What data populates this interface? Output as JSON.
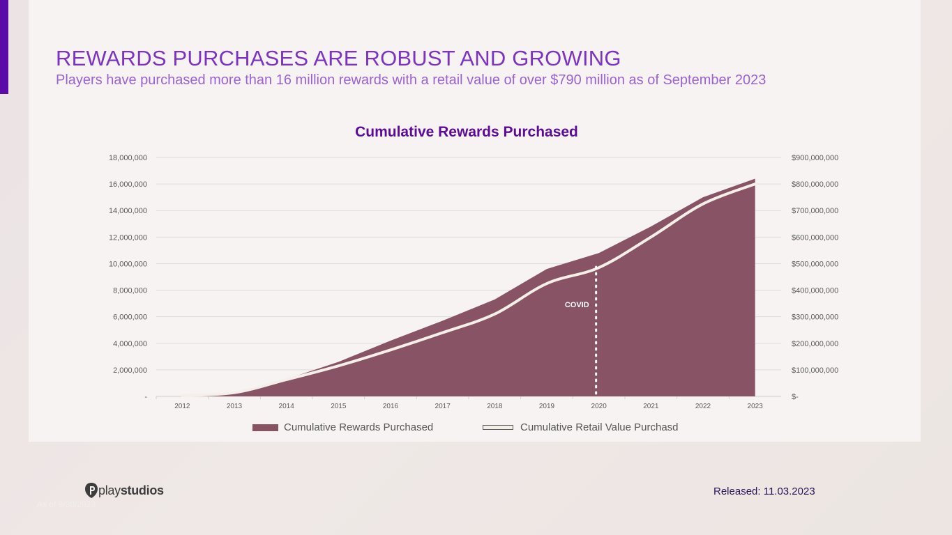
{
  "header": {
    "title": "REWARDS PURCHASES ARE ROBUST AND GROWING",
    "subtitle": "Players have purchased more than 16 million rewards with a retail value of over $790 million as of September 2023"
  },
  "footer": {
    "logo_text_light": "play",
    "logo_text_bold": "studios",
    "as_of": "As of 9/30/2023",
    "released": "Released: 11.03.2023"
  },
  "colors": {
    "accent": "#5b0aa8",
    "chart_title": "#5b0a99",
    "area_fill": "#875365",
    "line": "#f5efe9"
  },
  "chart_data": {
    "type": "area",
    "title": "Cumulative Rewards Purchased",
    "categories": [
      "2012",
      "2013",
      "2014",
      "2015",
      "2016",
      "2017",
      "2018",
      "2019",
      "2020",
      "2021",
      "2022",
      "2023"
    ],
    "y_ticks_left": [
      "18,000,000",
      "16,000,000",
      "14,000,000",
      "12,000,000",
      "10,000,000",
      "8,000,000",
      "6,000,000",
      "4,000,000",
      "2,000,000",
      "-"
    ],
    "y_ticks_right": [
      "$900,000,000",
      "$800,000,000",
      "$700,000,000",
      "$600,000,000",
      "$500,000,000",
      "$400,000,000",
      "$300,000,000",
      "$200,000,000",
      "$100,000,000",
      "$-"
    ],
    "ylim_left": [
      0,
      18000000
    ],
    "ylim_right": [
      0,
      900000000
    ],
    "series": [
      {
        "name": "Cumulative Rewards Purchased",
        "kind": "area",
        "axis": "left",
        "values": [
          0,
          200000,
          1300000,
          2600000,
          4200000,
          5700000,
          7300000,
          9600000,
          10800000,
          12800000,
          15000000,
          16400000
        ]
      },
      {
        "name": "Cumulative Retail Value Purchasd",
        "kind": "line",
        "axis": "right",
        "values": [
          3000000,
          14000000,
          63000000,
          115000000,
          175000000,
          240000000,
          310000000,
          425000000,
          485000000,
          600000000,
          725000000,
          800000000
        ]
      }
    ],
    "annotations": [
      {
        "text": "COVID",
        "x": "2020"
      }
    ],
    "grid": true,
    "legend": "bottom"
  }
}
